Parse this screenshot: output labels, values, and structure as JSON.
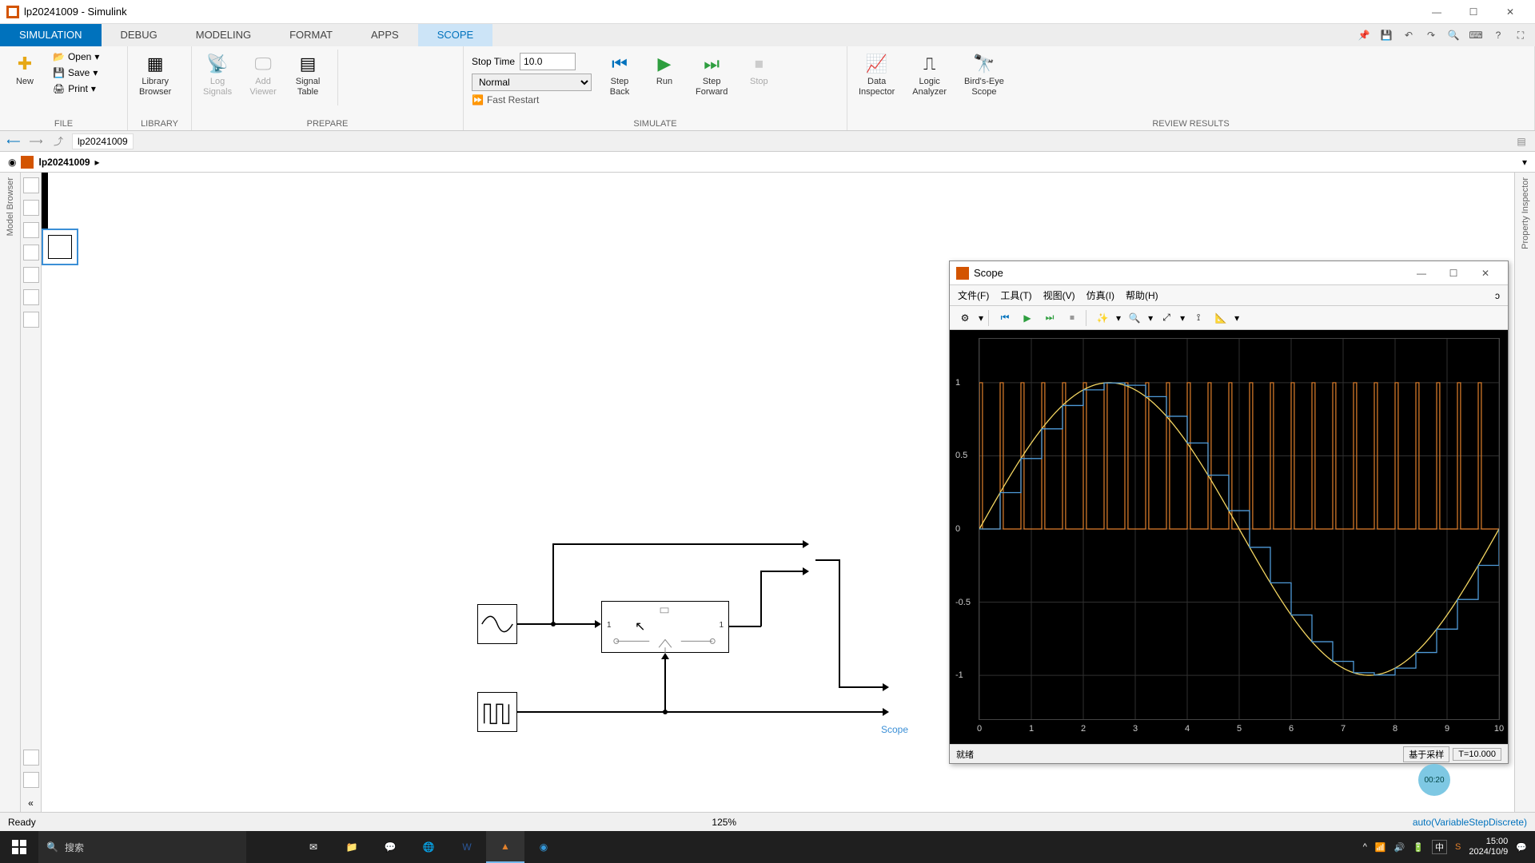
{
  "window": {
    "title": "lp20241009 - Simulink",
    "min": "—",
    "max": "☐",
    "close": "✕"
  },
  "tabs": {
    "items": [
      "SIMULATION",
      "DEBUG",
      "MODELING",
      "FORMAT",
      "APPS",
      "SCOPE"
    ],
    "active_index": 0,
    "scope_index": 5
  },
  "ribbon": {
    "file": {
      "new": "New",
      "open": "Open",
      "save": "Save",
      "print": "Print",
      "group": "FILE"
    },
    "library": {
      "browser": "Library\nBrowser",
      "group": "LIBRARY"
    },
    "prepare": {
      "log": "Log\nSignals",
      "add": "Add\nViewer",
      "signal": "Signal\nTable",
      "group": "PREPARE"
    },
    "simulate": {
      "stop_time_label": "Stop Time",
      "stop_time_value": "10.0",
      "mode": "Normal",
      "fast_restart": "Fast Restart",
      "step_back": "Step\nBack",
      "run": "Run",
      "step_fwd": "Step\nForward",
      "stop": "Stop",
      "group": "SIMULATE"
    },
    "review": {
      "data": "Data\nInspector",
      "logic": "Logic\nAnalyzer",
      "birdseye": "Bird's-Eye\nScope",
      "group": "REVIEW RESULTS"
    }
  },
  "nav": {
    "model": "lp20241009"
  },
  "breadcrumb": {
    "model": "lp20241009"
  },
  "side_left_label": "Model Browser",
  "side_right_label": "Property Inspector",
  "diagram": {
    "scope_label": "Scope",
    "port_in": "1",
    "port_out": "1"
  },
  "scope_win": {
    "title": "Scope",
    "menu": [
      "文件(F)",
      "工具(T)",
      "视图(V)",
      "仿真(I)",
      "帮助(H)"
    ],
    "status_left": "就绪",
    "status_mid": "基于采样",
    "status_right": "T=10.000",
    "chart": {
      "type": "line",
      "background_color": "#000000",
      "grid_color": "#303030",
      "xlim": [
        0,
        10
      ],
      "xtick_positions": [
        0,
        1,
        2,
        3,
        4,
        5,
        6,
        7,
        8,
        9,
        10
      ],
      "ylim": [
        -1.3,
        1.3
      ],
      "ytick_positions": [
        -1,
        -0.5,
        0,
        0.5,
        1
      ],
      "series": [
        {
          "name": "sine",
          "color": "#f5d762",
          "width": 1
        },
        {
          "name": "sampled",
          "color": "#4f9bd9",
          "width": 1
        },
        {
          "name": "pulse",
          "color": "#e2812c",
          "width": 1
        }
      ],
      "pulse_high": 1,
      "pulse_low": 0,
      "pulse_count": 25,
      "sine_freq_hz": 0.1
    }
  },
  "statusbar": {
    "left": "Ready",
    "zoom": "125%",
    "solver": "auto(VariableStepDiscrete)"
  },
  "taskbar": {
    "search_placeholder": "搜索",
    "time": "15:00",
    "date": "2024/10/9",
    "ime": "中"
  },
  "timer_badge": "00:20",
  "colors": {
    "accent": "#0072bd",
    "scope_border": "#3b8fd6",
    "run_green": "#2e9e3f",
    "stop_red": "#c0392b"
  }
}
